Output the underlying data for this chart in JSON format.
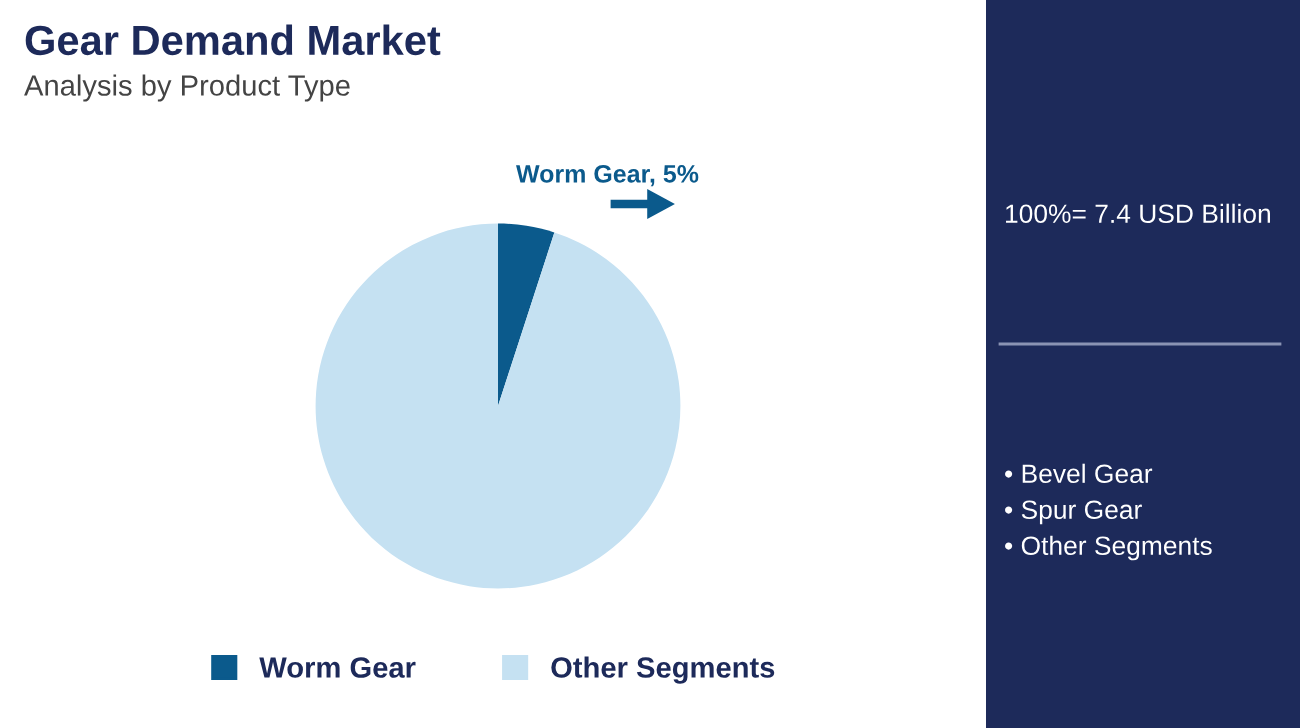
{
  "chart_data": {
    "type": "pie",
    "title": "Gear Demand Market",
    "subtitle": "Analysis by Product Type",
    "categories": [
      "Worm Gear",
      "Other Segments"
    ],
    "values": [
      5,
      95
    ],
    "colors": [
      "#0b5a8c",
      "#c5e1f2"
    ],
    "value_labels": [
      "Worm Gear, 5%",
      null
    ],
    "legend": "bottom",
    "annotations": [
      "100%= 7.4 USD Billion",
      "• Bevel Gear",
      "• Spur Gear",
      "• Other Segments"
    ]
  }
}
